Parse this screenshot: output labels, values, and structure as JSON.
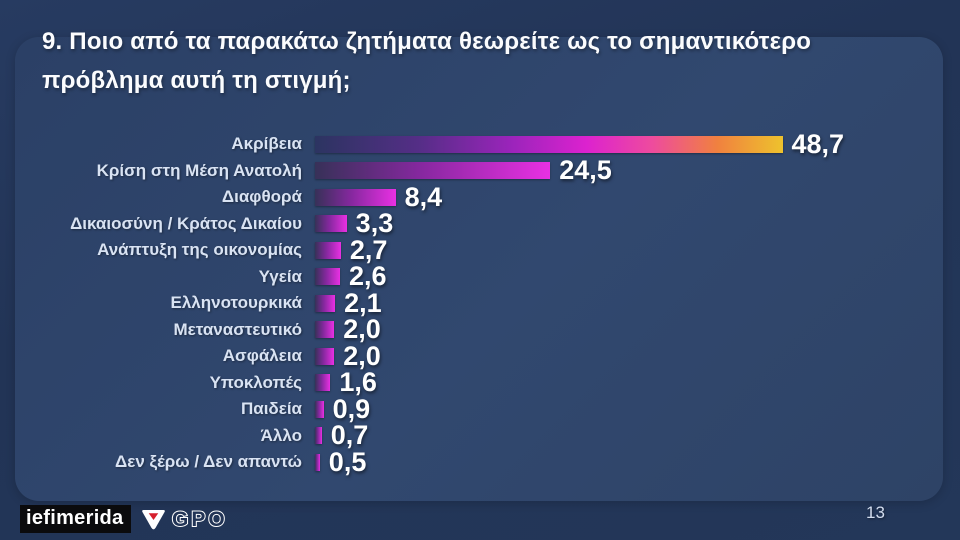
{
  "slide": {
    "title": "9. Ποιο από τα παρακάτω ζητήματα θεωρείτε ως το σημαντικότερο πρόβλημα αυτή τη στιγμή;",
    "page_number": "13"
  },
  "chart_data": {
    "type": "bar",
    "orientation": "horizontal",
    "title": "9. Ποιο από τα παρακάτω ζητήματα θεωρείτε ως το σημαντικότερο πρόβλημα αυτή τη στιγμή;",
    "categories": [
      "Ακρίβεια",
      "Κρίση στη Μέση Ανατολή",
      "Διαφθορά",
      "Δικαιοσύνη / Κράτος Δικαίου",
      "Ανάπτυξη της οικονομίας",
      "Υγεία",
      "Ελληνοτουρκικά",
      "Μεταναστευτικό",
      "Ασφάλεια",
      "Υποκλοπές",
      "Παιδεία",
      "Άλλο",
      "Δεν ξέρω / Δεν απαντώ"
    ],
    "values": [
      48.7,
      24.5,
      8.4,
      3.3,
      2.7,
      2.6,
      2.1,
      2.0,
      2.0,
      1.6,
      0.9,
      0.7,
      0.5
    ],
    "value_labels": [
      "48,7",
      "24,5",
      "8,4",
      "3,3",
      "2,7",
      "2,6",
      "2,1",
      "2,0",
      "2,0",
      "1,6",
      "0,9",
      "0,7",
      "0,5"
    ],
    "xlabel": "",
    "ylabel": "",
    "xlim": [
      0,
      50
    ],
    "grid": false,
    "legend": false,
    "value_labels_position": "end-of-bar"
  },
  "footer": {
    "iefimerida_red": "i",
    "iefimerida_rest": "efimerida",
    "gpo_label": "GPO"
  },
  "colors": {
    "background": "#223456",
    "card": "#2e4469",
    "label_color": "#d9e3f3",
    "value_color": "#ffffff",
    "iefimerida_red": "#e32127",
    "top_bar_gradient": [
      "#2c3461 0%",
      "#542e86 22%",
      "#9b24bb 42%",
      "#dc22cf 58%",
      "#ee4b9e 72%",
      "#f0813f 86%",
      "#eec22d 100%"
    ],
    "bar_gradient": [
      "#373158 0%",
      "#86289f 45%",
      "#e930e3 100%"
    ]
  }
}
